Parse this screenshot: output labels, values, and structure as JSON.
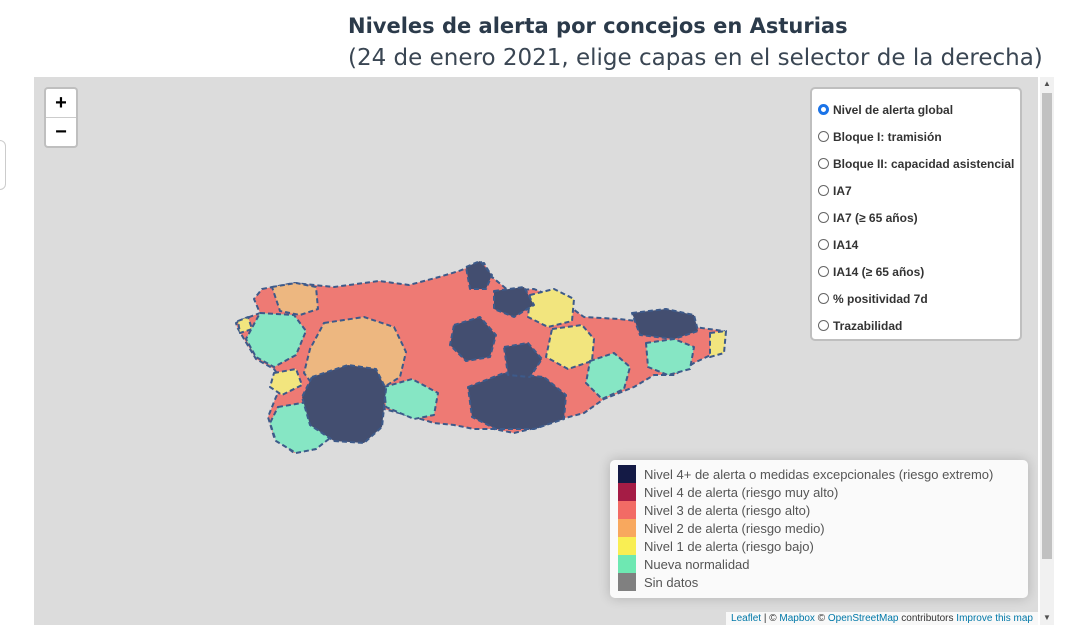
{
  "header": {
    "title": "Niveles de alerta por concejos en Asturias",
    "subtitle": "(24 de enero 2021, elige capas en el selector de la derecha)"
  },
  "zoom": {
    "in_label": "+",
    "out_label": "−"
  },
  "layers": {
    "selected": "Nivel de alerta global",
    "items": [
      "Nivel de alerta global",
      "Bloque I: tramisión",
      "Bloque II: capacidad asistencial",
      "IA7",
      "IA7 (≥ 65 años)",
      "IA14",
      "IA14 (≥ 65 años)",
      "% positividad 7d",
      "Trazabilidad"
    ]
  },
  "legend": {
    "items": [
      {
        "label": "Nivel 4+ de alerta o medidas excepcionales (riesgo extremo)",
        "color": "#141a45"
      },
      {
        "label": "Nivel 4 de alerta (riesgo muy alto)",
        "color": "#a51c45"
      },
      {
        "label": "Nivel 3 de alerta (riesgo alto)",
        "color": "#f26b65"
      },
      {
        "label": "Nivel 2 de alerta (riesgo medio)",
        "color": "#f8a85e"
      },
      {
        "label": "Nivel 1 de alerta (riesgo bajo)",
        "color": "#f9ee53"
      },
      {
        "label": "Nueva normalidad",
        "color": "#6ee8b2"
      },
      {
        "label": "Sin datos",
        "color": "#808080"
      }
    ]
  },
  "map_fill_colors": {
    "level4plus": "#434e70",
    "level3": "#ee7a74",
    "level2": "#edb780",
    "level1": "#f2e57e",
    "nueva": "#86e6c4"
  },
  "attribution": {
    "leaflet": "Leaflet",
    "separator": " | © ",
    "mapbox": "Mapbox",
    "copy": " © ",
    "osm": "OpenStreetMap",
    "contributors": " contributors ",
    "improve": "Improve this map"
  }
}
